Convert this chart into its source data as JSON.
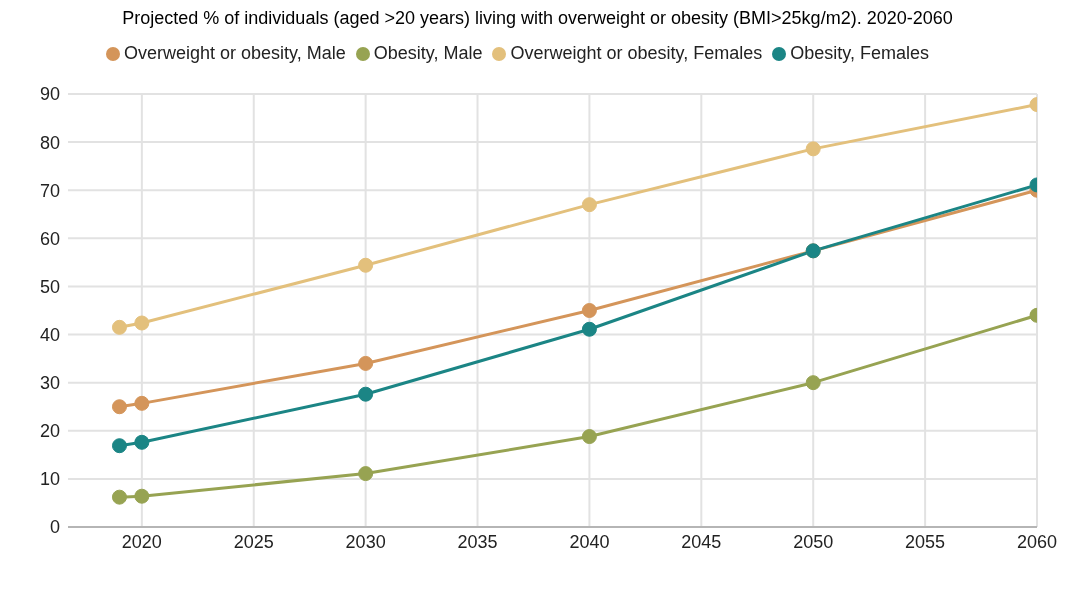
{
  "chart_data": {
    "type": "line",
    "title": "Projected % of individuals (aged >20 years) living with overweight or obesity (BMI>25kg/m2). 2020-2060",
    "x": [
      2019,
      2020,
      2030,
      2040,
      2050,
      2060
    ],
    "series": [
      {
        "name": "Overweight or obesity, Male",
        "color": "#d4955a",
        "values": [
          25,
          25.7,
          34,
          45,
          57.4,
          70
        ]
      },
      {
        "name": "Obesity, Male",
        "color": "#97a352",
        "values": [
          6.2,
          6.4,
          11.1,
          18.8,
          30,
          44
        ]
      },
      {
        "name": "Overweight or obesity, Females",
        "color": "#e3c07c",
        "values": [
          41.5,
          42.4,
          54.4,
          67,
          78.6,
          87.8
        ]
      },
      {
        "name": "Obesity, Females",
        "color": "#1b8585",
        "values": [
          16.9,
          17.6,
          27.6,
          41.1,
          57.4,
          71.1
        ]
      }
    ],
    "xlim": [
      2016.7,
      2060
    ],
    "xticks": [
      2020,
      2025,
      2030,
      2035,
      2040,
      2045,
      2050,
      2055,
      2060
    ],
    "ylim": [
      0,
      90
    ],
    "yticks": [
      0,
      10,
      20,
      30,
      40,
      50,
      60,
      70,
      80,
      90
    ],
    "grid": true,
    "legend": "top",
    "marker": "circle",
    "line_style": "solid"
  }
}
